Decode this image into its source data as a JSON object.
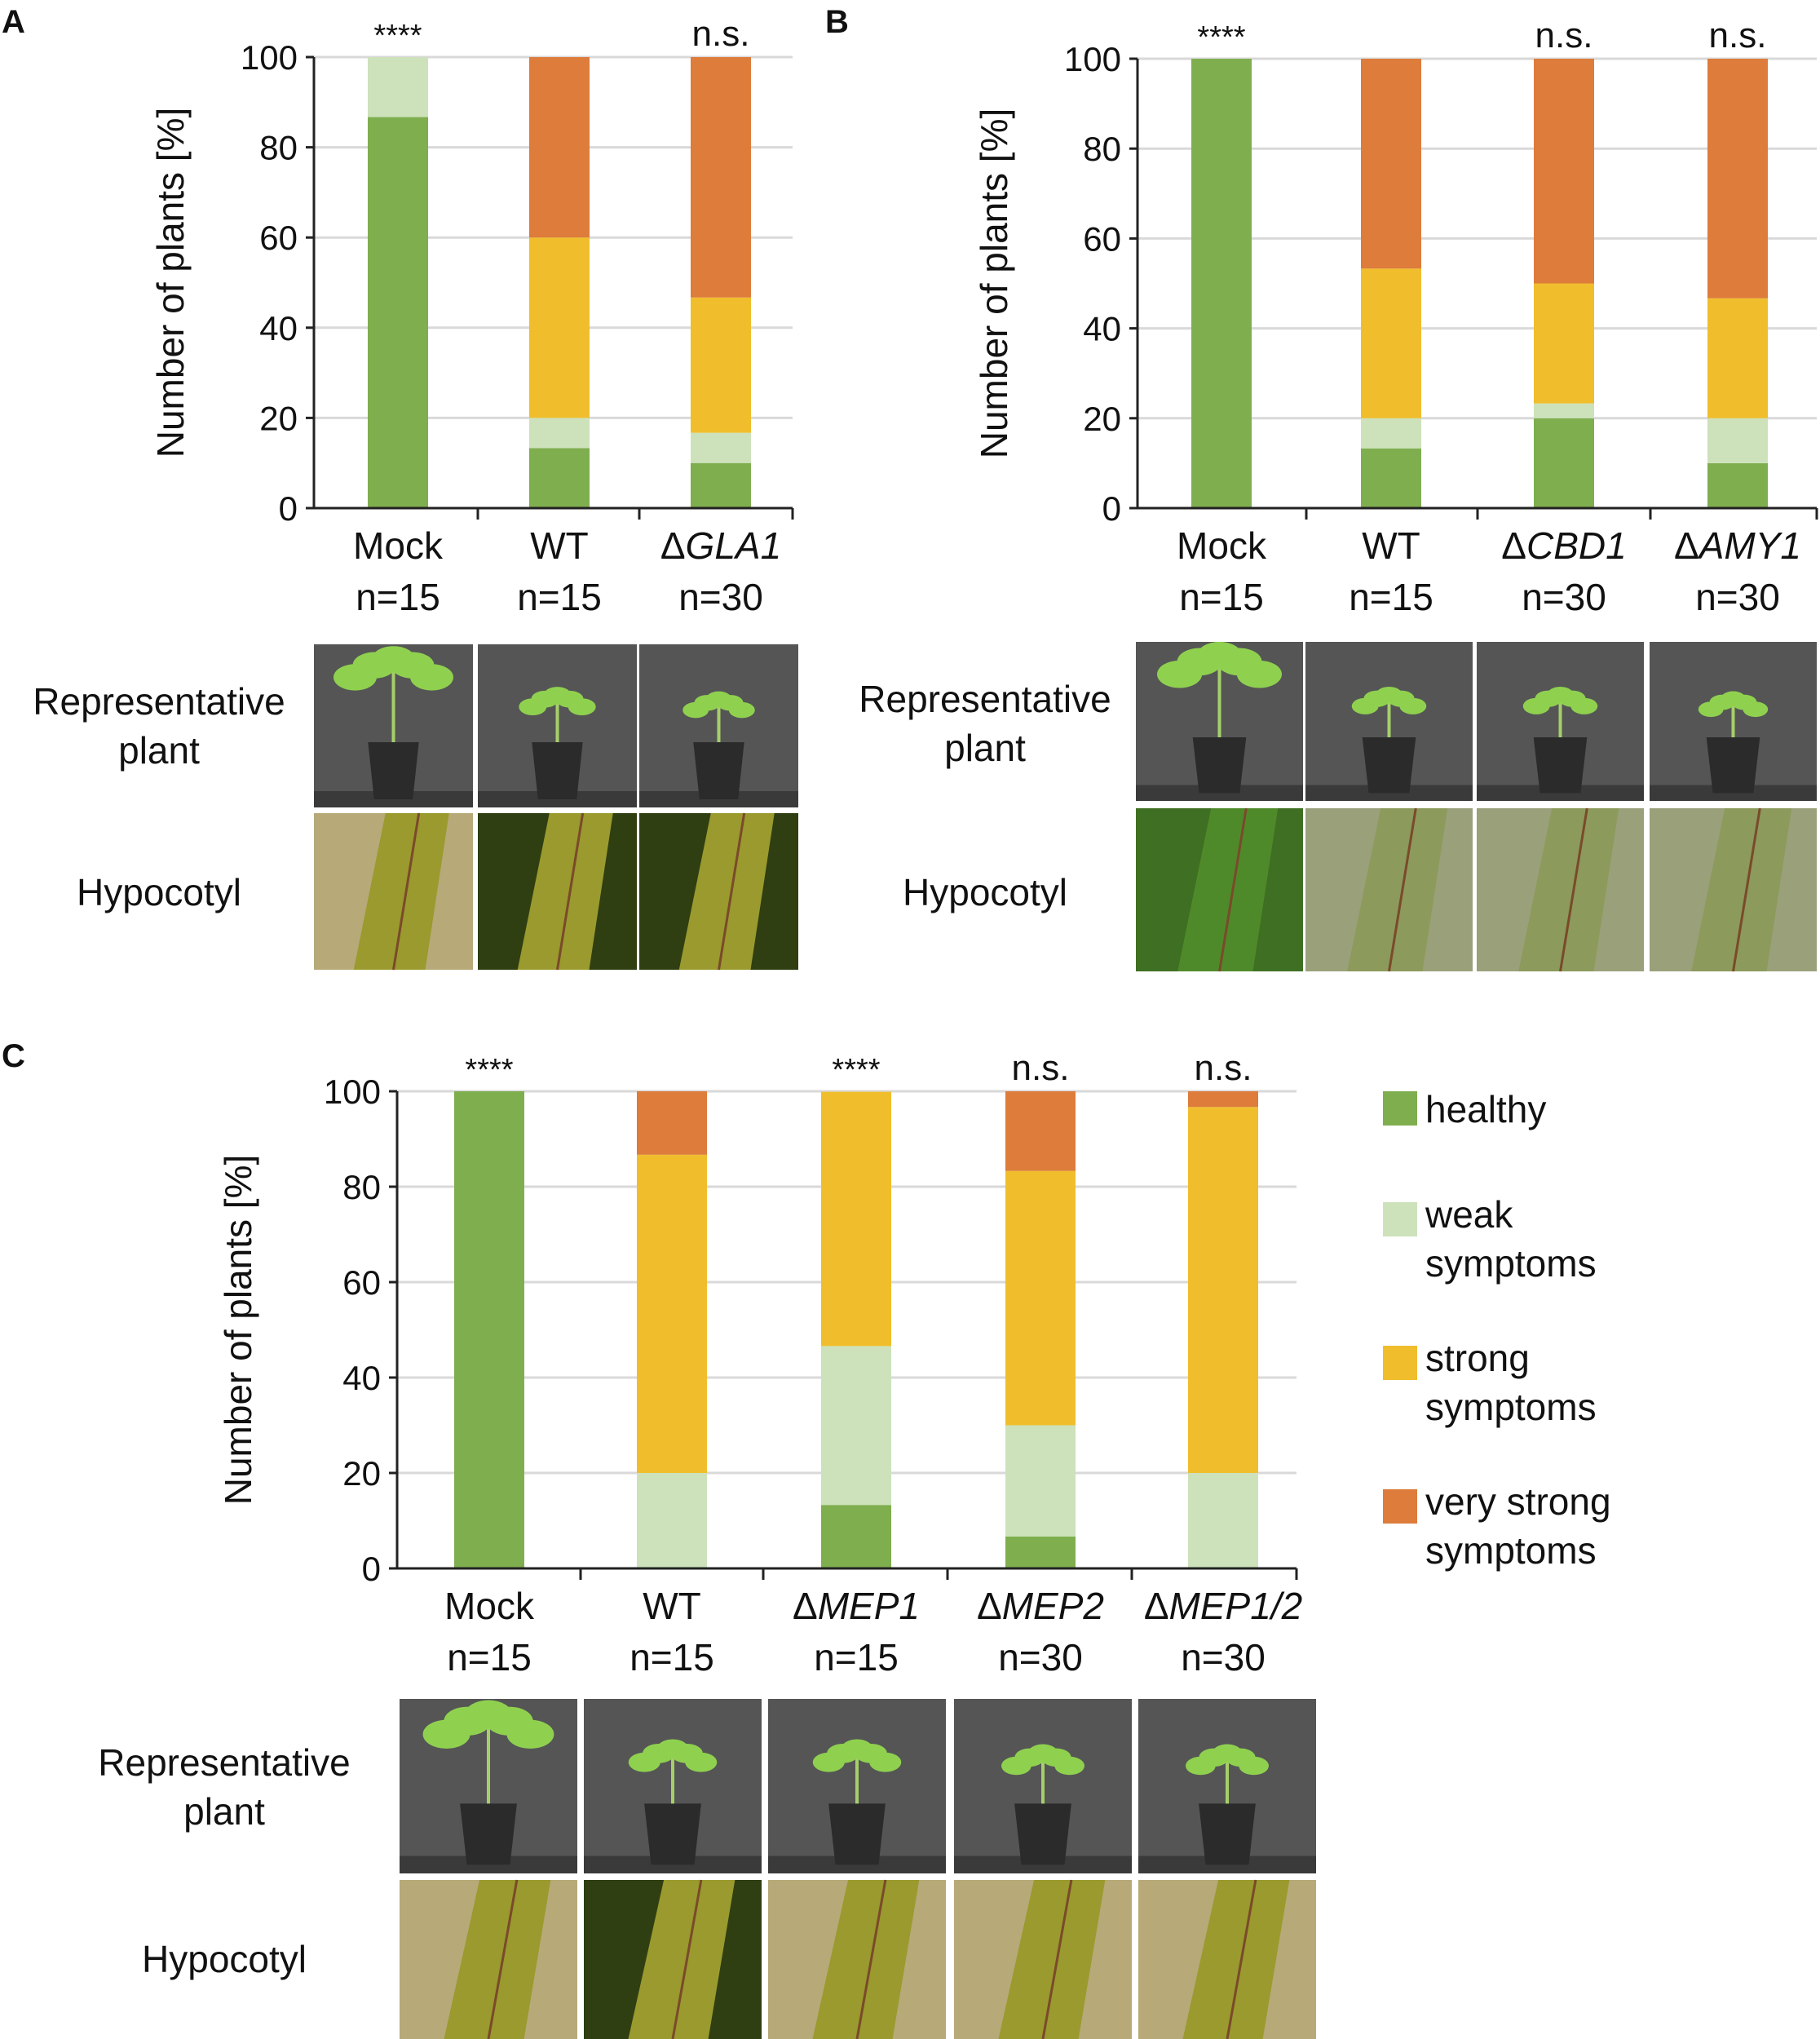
{
  "colors": {
    "healthy": "#7fae4f",
    "weak": "#cde2bb",
    "strong": "#f0be2d",
    "very_strong": "#dd7c3b",
    "grid": "#d9d9d9",
    "axis": "#222222",
    "photo_bg": "#555555",
    "hypo_dark": "#2f3f12",
    "hypo_light": "#b7a978",
    "pot": "#2b2b2b",
    "leaf": "#8fd14f"
  },
  "icons": {
    "plant_photo": "potted-tomato-seedling-photo",
    "hypocotyl_photo": "hypocotyl-micrograph-photo"
  },
  "row_labels": {
    "representative_plant": [
      "Representative",
      "plant"
    ],
    "hypocotyl": "Hypocotyl"
  },
  "legend": {
    "items": [
      {
        "key": "healthy",
        "lines": [
          "healthy"
        ]
      },
      {
        "key": "weak",
        "lines": [
          "weak",
          "symptoms"
        ]
      },
      {
        "key": "strong",
        "lines": [
          "strong",
          "symptoms"
        ]
      },
      {
        "key": "very_strong",
        "lines": [
          "very strong",
          "symptoms"
        ]
      }
    ]
  },
  "chart_data": [
    {
      "panel": "A",
      "type": "bar",
      "stacked": true,
      "ylabel": "Number of plants [%]",
      "ylim": [
        0,
        100
      ],
      "yticks": [
        0,
        20,
        40,
        60,
        80,
        100
      ],
      "grid": true,
      "categories": [
        {
          "prefix": "",
          "name": "Mock",
          "italic": false,
          "n": "n=15"
        },
        {
          "prefix": "",
          "name": "WT",
          "italic": false,
          "n": "n=15"
        },
        {
          "prefix": "Δ",
          "name": "GLA1",
          "italic": true,
          "n": "n=30"
        }
      ],
      "significance": [
        "****",
        "",
        "n.s."
      ],
      "series": [
        {
          "key": "healthy",
          "values": [
            86.7,
            13.3,
            10.0
          ]
        },
        {
          "key": "weak",
          "values": [
            13.3,
            6.7,
            6.7
          ]
        },
        {
          "key": "strong",
          "values": [
            0,
            40.0,
            30.0
          ]
        },
        {
          "key": "very_strong",
          "values": [
            0,
            40.0,
            53.3
          ]
        }
      ],
      "photos": {
        "plant_size": [
          1.0,
          0.55,
          0.5
        ],
        "hypocotyl_tone": [
          "light",
          "dark",
          "dark"
        ]
      }
    },
    {
      "panel": "B",
      "type": "bar",
      "stacked": true,
      "ylabel": "Number of plants [%]",
      "ylim": [
        0,
        100
      ],
      "yticks": [
        0,
        20,
        40,
        60,
        80,
        100
      ],
      "grid": true,
      "categories": [
        {
          "prefix": "",
          "name": "Mock",
          "italic": false,
          "n": "n=15"
        },
        {
          "prefix": "",
          "name": "WT",
          "italic": false,
          "n": "n=15"
        },
        {
          "prefix": "Δ",
          "name": "CBD1",
          "italic": true,
          "n": "n=30"
        },
        {
          "prefix": "Δ",
          "name": "AMY1",
          "italic": true,
          "n": "n=30"
        }
      ],
      "significance": [
        "****",
        "",
        "n.s.",
        "n.s."
      ],
      "series": [
        {
          "key": "healthy",
          "values": [
            100,
            13.3,
            20.0,
            10.0
          ]
        },
        {
          "key": "weak",
          "values": [
            0,
            6.7,
            3.3,
            10.0
          ]
        },
        {
          "key": "strong",
          "values": [
            0,
            33.3,
            26.7,
            26.7
          ]
        },
        {
          "key": "very_strong",
          "values": [
            0,
            46.7,
            50.0,
            53.3
          ]
        }
      ],
      "photos": {
        "plant_size": [
          1.0,
          0.5,
          0.5,
          0.45
        ],
        "hypocotyl_tone": [
          "green",
          "grey",
          "grey",
          "grey"
        ]
      }
    },
    {
      "panel": "C",
      "type": "bar",
      "stacked": true,
      "ylabel": "Number of plants [%]",
      "ylim": [
        0,
        100
      ],
      "yticks": [
        0,
        20,
        40,
        60,
        80,
        100
      ],
      "grid": true,
      "categories": [
        {
          "prefix": "",
          "name": "Mock",
          "italic": false,
          "n": "n=15"
        },
        {
          "prefix": "",
          "name": "WT",
          "italic": false,
          "n": "n=15"
        },
        {
          "prefix": "Δ",
          "name": "MEP1",
          "italic": true,
          "n": "n=15"
        },
        {
          "prefix": "Δ",
          "name": "MEP2",
          "italic": true,
          "n": "n=30"
        },
        {
          "prefix": "Δ",
          "name": "MEP1/2",
          "italic": true,
          "n": "n=30"
        }
      ],
      "significance": [
        "****",
        "",
        "****",
        "n.s.",
        "n.s."
      ],
      "series": [
        {
          "key": "healthy",
          "values": [
            100,
            0,
            13.3,
            6.7,
            0
          ]
        },
        {
          "key": "weak",
          "values": [
            0,
            20.0,
            33.3,
            23.3,
            20.0
          ]
        },
        {
          "key": "strong",
          "values": [
            0,
            66.7,
            53.3,
            53.3,
            76.7
          ]
        },
        {
          "key": "very_strong",
          "values": [
            0,
            13.3,
            0,
            16.7,
            3.3
          ]
        }
      ],
      "photos": {
        "plant_size": [
          1.0,
          0.6,
          0.6,
          0.55,
          0.55
        ],
        "hypocotyl_tone": [
          "light",
          "dark",
          "light",
          "light",
          "light"
        ]
      }
    }
  ]
}
